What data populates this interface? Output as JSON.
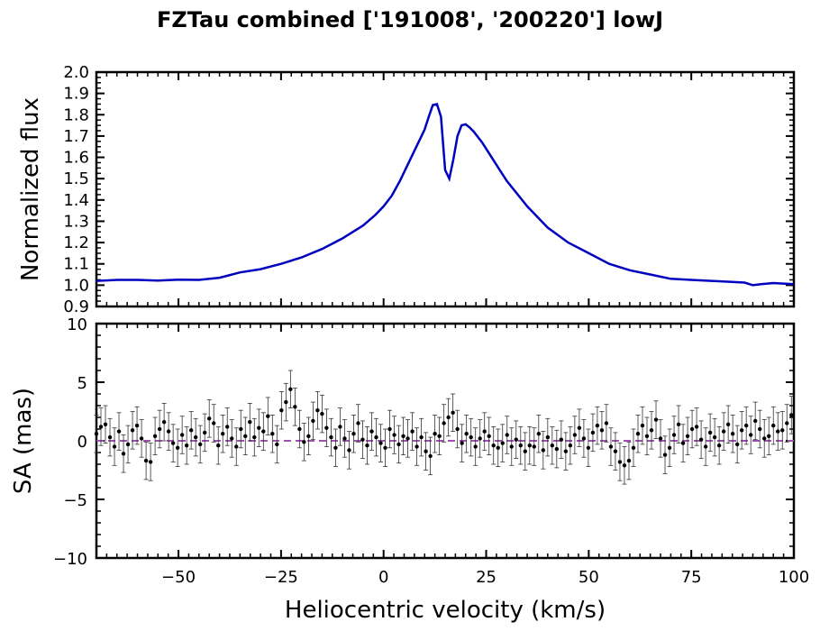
{
  "title": "FZTau combined ['191008', '200220'] lowJ",
  "chart_data": [
    {
      "type": "line",
      "panel": "top",
      "ylabel": "Normalized flux",
      "xlim": [
        -70,
        100
      ],
      "ylim": [
        0.9,
        2.0
      ],
      "x_ticks": [
        -50,
        -25,
        0,
        25,
        50,
        75,
        100
      ],
      "x_tick_labels_shown": false,
      "y_ticks": [
        0.9,
        1.0,
        1.1,
        1.2,
        1.3,
        1.4,
        1.5,
        1.6,
        1.7,
        1.8,
        1.9,
        2.0
      ],
      "y_tick_labels": [
        "0.9",
        "1.0",
        "1.1",
        "1.2",
        "1.3",
        "1.4",
        "1.5",
        "1.6",
        "1.7",
        "1.8",
        "1.9",
        "2.0"
      ],
      "line_color": "#0000c0",
      "series": [
        {
          "x": [
            -70,
            -65,
            -60,
            -55,
            -50,
            -45,
            -40,
            -35,
            -30,
            -25,
            -20,
            -15,
            -10,
            -5,
            -2,
            0,
            2,
            4,
            6,
            8,
            10,
            11,
            12,
            13,
            14,
            15,
            16,
            17,
            18,
            19,
            20,
            21,
            22,
            24,
            26,
            28,
            30,
            35,
            40,
            45,
            50,
            55,
            60,
            65,
            70,
            75,
            80,
            85,
            88,
            90,
            92,
            95,
            100
          ],
          "y": [
            1.02,
            1.025,
            1.025,
            1.022,
            1.026,
            1.025,
            1.035,
            1.06,
            1.075,
            1.1,
            1.13,
            1.17,
            1.22,
            1.28,
            1.33,
            1.37,
            1.42,
            1.49,
            1.57,
            1.65,
            1.73,
            1.79,
            1.845,
            1.85,
            1.79,
            1.54,
            1.5,
            1.59,
            1.7,
            1.75,
            1.755,
            1.74,
            1.72,
            1.67,
            1.61,
            1.55,
            1.49,
            1.37,
            1.27,
            1.2,
            1.15,
            1.1,
            1.07,
            1.05,
            1.03,
            1.025,
            1.02,
            1.015,
            1.012,
            1.0,
            1.005,
            1.01,
            1.005
          ]
        }
      ]
    },
    {
      "type": "scatter",
      "panel": "bottom",
      "xlabel": "Heliocentric velocity (km/s)",
      "ylabel": "SA (mas)",
      "xlim": [
        -70,
        100
      ],
      "ylim": [
        -10,
        10
      ],
      "x_ticks": [
        -50,
        -25,
        0,
        25,
        50,
        75,
        100
      ],
      "x_tick_labels": [
        "−50",
        "−25",
        "0",
        "25",
        "50",
        "75",
        "100"
      ],
      "y_ticks": [
        -10,
        -5,
        0,
        5,
        10
      ],
      "y_tick_labels": [
        "−10",
        "−5",
        "0",
        "5",
        "10"
      ],
      "reference_line": {
        "y": 0,
        "style": "dashed",
        "color": "#a050b0"
      },
      "point_color": "#000000",
      "x_start": -70,
      "x_step": 1.1,
      "y": [
        0.6,
        1.2,
        1.4,
        0.3,
        -0.5,
        0.8,
        -1.1,
        -0.3,
        0.9,
        1.3,
        0.2,
        -1.7,
        -1.8,
        0.4,
        1.0,
        1.6,
        0.8,
        -0.2,
        -0.6,
        0.5,
        -0.4,
        0.9,
        0.3,
        -0.3,
        0.7,
        1.9,
        1.5,
        -0.4,
        0.6,
        1.2,
        0.2,
        -0.5,
        1.0,
        0.4,
        1.6,
        0.3,
        1.1,
        0.8,
        2.1,
        0.6,
        -0.3,
        2.6,
        3.3,
        4.4,
        2.9,
        1.0,
        -0.1,
        0.4,
        1.7,
        2.6,
        2.3,
        1.1,
        0.3,
        -0.6,
        1.2,
        0.2,
        -0.8,
        0.6,
        1.5,
        0.1,
        -0.4,
        0.8,
        0.3,
        -0.2,
        -0.6,
        1.0,
        0.5,
        -0.3,
        0.4,
        0.2,
        0.8,
        -0.5,
        0.3,
        -0.9,
        -1.3,
        0.6,
        0.4,
        1.5,
        2.0,
        2.4,
        1.0,
        -0.2,
        0.6,
        0.3,
        -0.5,
        0.2,
        0.8,
        0.4,
        -0.4,
        -0.6,
        -0.2,
        0.5,
        -0.5,
        0.1,
        -0.4,
        -0.9,
        -0.4,
        -0.5,
        0.6,
        -0.8,
        0.3,
        -0.4,
        -0.7,
        0.1,
        -0.9,
        -0.4,
        0.5,
        1.1,
        0.2,
        -0.6,
        0.7,
        1.3,
        0.9,
        1.5,
        -0.5,
        -0.9,
        -1.8,
        -2.1,
        -1.7,
        -0.6,
        0.6,
        1.3,
        0.4,
        0.9,
        1.8,
        0.2,
        -1.2,
        -0.6,
        0.5,
        1.4,
        -0.2,
        0.4,
        1.0,
        1.2,
        0.1,
        -0.5,
        0.7,
        0.3,
        -0.4,
        0.8,
        1.4,
        0.6,
        -0.3,
        0.9,
        1.3,
        0.5,
        1.7,
        1.0,
        0.2,
        0.4,
        1.3,
        0.8,
        0.9,
        1.5,
        2.2,
        1.0,
        0.6,
        1.9,
        1.6,
        0.4,
        1.2,
        1.5,
        0.5,
        1.3,
        1.1
      ]
    }
  ]
}
